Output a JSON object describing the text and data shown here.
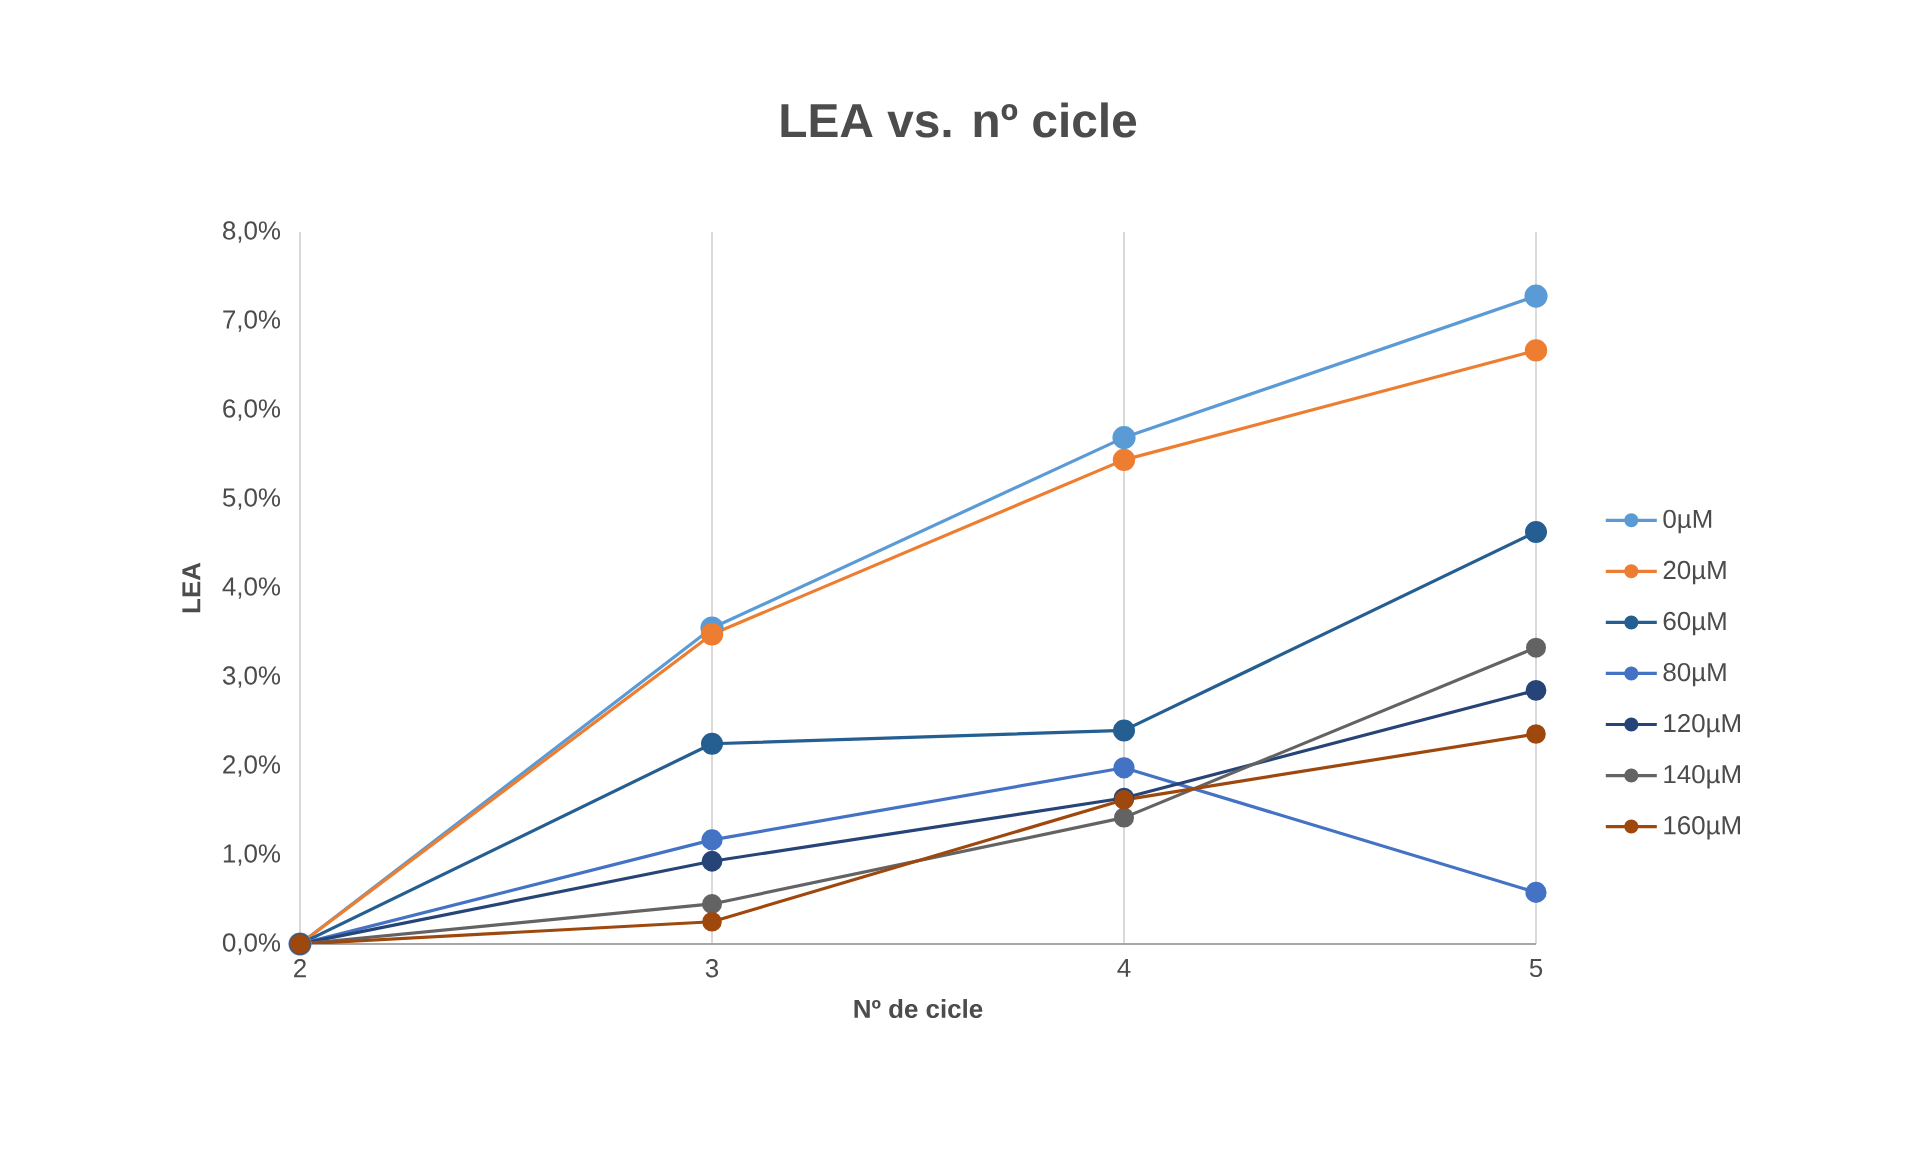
{
  "chart_data": {
    "type": "line",
    "title": "LEA vs. nº cicle",
    "xlabel": "Nº de cicle",
    "ylabel": "LEA",
    "x": [
      2,
      3,
      4,
      5
    ],
    "series": [
      {
        "name": "0µM",
        "color": "#5b9bd5",
        "values": [
          0,
          3.55,
          5.69,
          7.28
        ]
      },
      {
        "name": "20µM",
        "color": "#ed7d31",
        "values": [
          0,
          3.48,
          5.44,
          6.67
        ]
      },
      {
        "name": "60µM",
        "color": "#255e91",
        "values": [
          0,
          2.25,
          2.4,
          4.63
        ]
      },
      {
        "name": "80µM",
        "color": "#4472c4",
        "values": [
          0,
          1.17,
          1.98,
          0.58
        ]
      },
      {
        "name": "120µM",
        "color": "#264478",
        "values": [
          0,
          0.93,
          1.64,
          2.85
        ]
      },
      {
        "name": "140µM",
        "color": "#636363",
        "values": [
          0,
          0.45,
          1.42,
          3.33
        ]
      },
      {
        "name": "160µM",
        "color": "#9e480e",
        "values": [
          0,
          0.25,
          1.62,
          2.36
        ]
      }
    ],
    "xlim": [
      2,
      5
    ],
    "xticks": [
      2,
      3,
      4,
      5
    ],
    "ylim": [
      0,
      8
    ],
    "yticks": [
      {
        "value": 0,
        "label": "0,0%"
      },
      {
        "value": 1,
        "label": "1,0%"
      },
      {
        "value": 2,
        "label": "2,0%"
      },
      {
        "value": 3,
        "label": "3,0%"
      },
      {
        "value": 4,
        "label": "4,0%"
      },
      {
        "value": 5,
        "label": "5,0%"
      },
      {
        "value": 6,
        "label": "6,0%"
      },
      {
        "value": 7,
        "label": "7,0%"
      },
      {
        "value": 8,
        "label": "8,0%"
      }
    ],
    "grid": "x",
    "legend": "right",
    "marker": "circle",
    "line_style": "solid"
  }
}
